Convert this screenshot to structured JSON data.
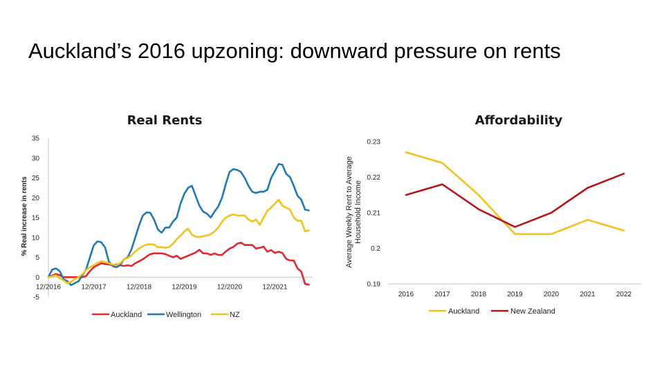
{
  "slide": {
    "title": "Auckland’s 2016 upzoning: downward pressure on rents"
  },
  "chart_data": [
    {
      "type": "line",
      "title": "Real Rents",
      "xlabel": "",
      "ylabel": "% Real increase in rents",
      "ylim": [
        -5,
        35
      ],
      "yticks": [
        -5,
        0,
        5,
        10,
        15,
        20,
        25,
        30,
        35
      ],
      "x_tick_labels": [
        "12/2016",
        "12/2017",
        "12/2018",
        "12/2019",
        "12/2020",
        "12/2021"
      ],
      "x_ticks": [
        0,
        12,
        24,
        36,
        48,
        60
      ],
      "xlim": [
        0,
        70
      ],
      "grid": false,
      "legend": "bottom",
      "series": [
        {
          "name": "Auckland",
          "color": "#e3262b",
          "x": [
            0,
            1,
            2,
            3,
            4,
            5,
            6,
            7,
            8,
            9,
            10,
            11,
            12,
            13,
            14,
            15,
            16,
            17,
            18,
            19,
            20,
            21,
            22,
            23,
            24,
            25,
            26,
            27,
            28,
            29,
            30,
            31,
            32,
            33,
            34,
            35,
            36,
            37,
            38,
            39,
            40,
            41,
            42,
            43,
            44,
            45,
            46,
            47,
            48,
            49,
            50,
            51,
            52,
            53,
            54,
            55,
            56,
            57,
            58,
            59,
            60,
            61,
            62,
            63,
            64,
            65,
            66,
            67,
            68,
            69
          ],
          "values": [
            0,
            0.4,
            0.8,
            0.5,
            0,
            0,
            0,
            0,
            0,
            0,
            0.3,
            1.5,
            2.5,
            3,
            3.5,
            3.3,
            3.2,
            3,
            3.2,
            3,
            2.8,
            3,
            2.8,
            3.5,
            4,
            4.5,
            5.2,
            5.8,
            6,
            6,
            6,
            5.8,
            5.4,
            5,
            5.4,
            4.6,
            5,
            5.4,
            5.8,
            6.2,
            6.9,
            6,
            6,
            5.6,
            6,
            5.6,
            5.6,
            6.5,
            7.2,
            7.6,
            8.4,
            8.7,
            8.1,
            8.1,
            8.1,
            7.2,
            7.4,
            7.7,
            6.4,
            6.8,
            6.1,
            6.4,
            6.1,
            4.6,
            4.2,
            4.2,
            2.2,
            1.4,
            -1.7,
            -1.9
          ]
        },
        {
          "name": "Wellington",
          "color": "#1f77b4",
          "x": [
            0,
            1,
            2,
            3,
            4,
            5,
            6,
            7,
            8,
            9,
            10,
            11,
            12,
            13,
            14,
            15,
            16,
            17,
            18,
            19,
            20,
            21,
            22,
            23,
            24,
            25,
            26,
            27,
            28,
            29,
            30,
            31,
            32,
            33,
            34,
            35,
            36,
            37,
            38,
            39,
            40,
            41,
            42,
            43,
            44,
            45,
            46,
            47,
            48,
            49,
            50,
            51,
            52,
            53,
            54,
            55,
            56,
            57,
            58,
            59,
            60,
            61,
            62,
            63,
            64,
            65,
            66,
            67,
            68,
            69
          ],
          "values": [
            0,
            1.9,
            2.2,
            1.5,
            -0.5,
            -1,
            -2,
            -1.5,
            -1,
            0.5,
            2,
            5,
            8,
            9,
            8.8,
            7.5,
            4,
            2.8,
            2.5,
            3,
            4.5,
            5,
            7,
            10,
            13,
            15.5,
            16.3,
            16.2,
            14.5,
            12,
            11.2,
            12.5,
            12.5,
            14,
            15,
            18.5,
            21,
            22.5,
            23,
            20.5,
            18,
            16.5,
            16,
            15,
            16.5,
            17.8,
            20,
            23.5,
            26.5,
            27.2,
            27,
            26.5,
            25,
            23,
            21.5,
            21.2,
            21.5,
            21.5,
            22,
            25,
            26.7,
            28.5,
            28.3,
            26,
            25.2,
            23,
            20.5,
            19.5,
            17,
            16.8
          ]
        },
        {
          "name": "NZ",
          "color": "#f2c21b",
          "x": [
            0,
            1,
            2,
            3,
            4,
            5,
            6,
            7,
            8,
            9,
            10,
            11,
            12,
            13,
            14,
            15,
            16,
            17,
            18,
            19,
            20,
            21,
            22,
            23,
            24,
            25,
            26,
            27,
            28,
            29,
            30,
            31,
            32,
            33,
            34,
            35,
            36,
            37,
            38,
            39,
            40,
            41,
            42,
            43,
            44,
            45,
            46,
            47,
            48,
            49,
            50,
            51,
            52,
            53,
            54,
            55,
            56,
            57,
            58,
            59,
            60,
            61,
            62,
            63,
            64,
            65,
            66,
            67,
            68,
            69
          ],
          "values": [
            0,
            0.2,
            0.5,
            -0.3,
            -0.8,
            -1.5,
            -1.2,
            -0.5,
            0,
            0.8,
            1.8,
            2.5,
            3,
            3.6,
            4,
            3.8,
            3.5,
            3.2,
            3,
            3.5,
            4.5,
            4.8,
            5.5,
            6.5,
            7.2,
            7.8,
            8.2,
            8.3,
            8.2,
            7.5,
            7.6,
            7.4,
            7.6,
            8.4,
            9.6,
            10.4,
            11.5,
            12.2,
            10.7,
            10.2,
            10.1,
            10.3,
            10.5,
            10.8,
            11.5,
            12.5,
            14,
            15,
            15.5,
            15.8,
            15.5,
            15.5,
            15.5,
            14.5,
            14,
            14.5,
            13.2,
            15,
            16.7,
            17.5,
            18.5,
            19.5,
            18,
            17.5,
            17,
            15,
            14.2,
            14.2,
            11.5,
            11.8
          ]
        }
      ]
    },
    {
      "type": "line",
      "title": "Affordability",
      "xlabel": "",
      "ylabel": "Average Weekly Rent to Average Household Income",
      "ylabel_lines": [
        "Average Weekly Rent to Average",
        "Household Income"
      ],
      "ylim": [
        0.19,
        0.23
      ],
      "yticks": [
        0.19,
        0.2,
        0.21,
        0.22,
        0.23
      ],
      "ytick_labels": [
        "0.19",
        "0.2",
        "0.21",
        "0.22",
        "0.23"
      ],
      "categories": [
        "2016",
        "2017",
        "2018",
        "2019",
        "2020",
        "2021",
        "2022"
      ],
      "grid": false,
      "legend": "bottom",
      "series": [
        {
          "name": "Auckland",
          "color": "#f2c21b",
          "values": [
            0.227,
            0.224,
            0.215,
            0.204,
            0.204,
            0.208,
            0.205
          ]
        },
        {
          "name": "New Zealand",
          "color": "#b5161b",
          "values": [
            0.215,
            0.218,
            0.211,
            0.206,
            0.21,
            0.217,
            0.221
          ]
        }
      ]
    }
  ]
}
